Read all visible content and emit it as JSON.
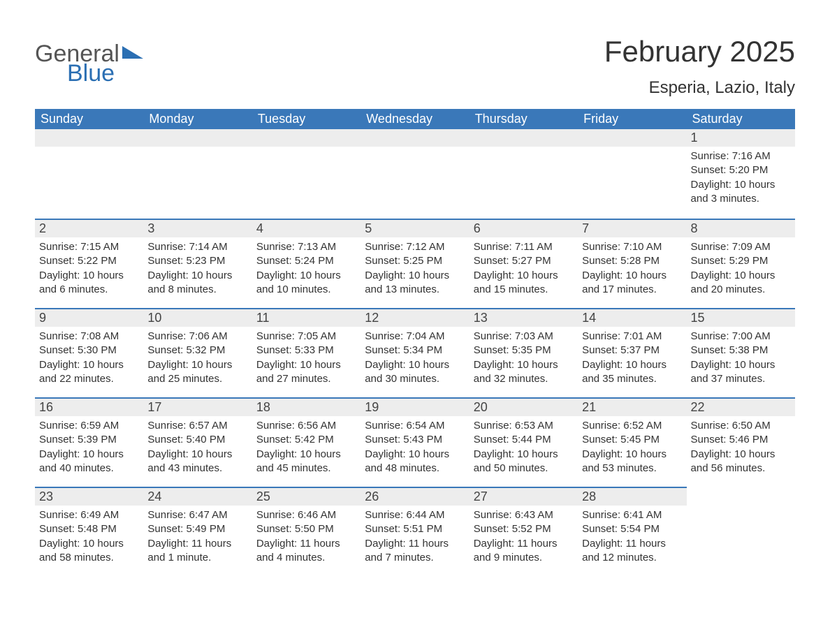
{
  "logo": {
    "word1": "General",
    "word2": "Blue"
  },
  "header": {
    "title": "February 2025",
    "location": "Esperia, Lazio, Italy"
  },
  "colors": {
    "header_bg": "#3a78b9",
    "header_text": "#ffffff",
    "daynum_bg": "#ededed",
    "row_border": "#3a78b9",
    "page_bg": "#ffffff",
    "body_text": "#333333",
    "logo_gray": "#555555",
    "logo_blue": "#2b6fb3"
  },
  "days_of_week": [
    "Sunday",
    "Monday",
    "Tuesday",
    "Wednesday",
    "Thursday",
    "Friday",
    "Saturday"
  ],
  "weeks": [
    [
      null,
      null,
      null,
      null,
      null,
      null,
      {
        "n": "1",
        "sunrise": "Sunrise: 7:16 AM",
        "sunset": "Sunset: 5:20 PM",
        "daylight": "Daylight: 10 hours and 3 minutes."
      }
    ],
    [
      {
        "n": "2",
        "sunrise": "Sunrise: 7:15 AM",
        "sunset": "Sunset: 5:22 PM",
        "daylight": "Daylight: 10 hours and 6 minutes."
      },
      {
        "n": "3",
        "sunrise": "Sunrise: 7:14 AM",
        "sunset": "Sunset: 5:23 PM",
        "daylight": "Daylight: 10 hours and 8 minutes."
      },
      {
        "n": "4",
        "sunrise": "Sunrise: 7:13 AM",
        "sunset": "Sunset: 5:24 PM",
        "daylight": "Daylight: 10 hours and 10 minutes."
      },
      {
        "n": "5",
        "sunrise": "Sunrise: 7:12 AM",
        "sunset": "Sunset: 5:25 PM",
        "daylight": "Daylight: 10 hours and 13 minutes."
      },
      {
        "n": "6",
        "sunrise": "Sunrise: 7:11 AM",
        "sunset": "Sunset: 5:27 PM",
        "daylight": "Daylight: 10 hours and 15 minutes."
      },
      {
        "n": "7",
        "sunrise": "Sunrise: 7:10 AM",
        "sunset": "Sunset: 5:28 PM",
        "daylight": "Daylight: 10 hours and 17 minutes."
      },
      {
        "n": "8",
        "sunrise": "Sunrise: 7:09 AM",
        "sunset": "Sunset: 5:29 PM",
        "daylight": "Daylight: 10 hours and 20 minutes."
      }
    ],
    [
      {
        "n": "9",
        "sunrise": "Sunrise: 7:08 AM",
        "sunset": "Sunset: 5:30 PM",
        "daylight": "Daylight: 10 hours and 22 minutes."
      },
      {
        "n": "10",
        "sunrise": "Sunrise: 7:06 AM",
        "sunset": "Sunset: 5:32 PM",
        "daylight": "Daylight: 10 hours and 25 minutes."
      },
      {
        "n": "11",
        "sunrise": "Sunrise: 7:05 AM",
        "sunset": "Sunset: 5:33 PM",
        "daylight": "Daylight: 10 hours and 27 minutes."
      },
      {
        "n": "12",
        "sunrise": "Sunrise: 7:04 AM",
        "sunset": "Sunset: 5:34 PM",
        "daylight": "Daylight: 10 hours and 30 minutes."
      },
      {
        "n": "13",
        "sunrise": "Sunrise: 7:03 AM",
        "sunset": "Sunset: 5:35 PM",
        "daylight": "Daylight: 10 hours and 32 minutes."
      },
      {
        "n": "14",
        "sunrise": "Sunrise: 7:01 AM",
        "sunset": "Sunset: 5:37 PM",
        "daylight": "Daylight: 10 hours and 35 minutes."
      },
      {
        "n": "15",
        "sunrise": "Sunrise: 7:00 AM",
        "sunset": "Sunset: 5:38 PM",
        "daylight": "Daylight: 10 hours and 37 minutes."
      }
    ],
    [
      {
        "n": "16",
        "sunrise": "Sunrise: 6:59 AM",
        "sunset": "Sunset: 5:39 PM",
        "daylight": "Daylight: 10 hours and 40 minutes."
      },
      {
        "n": "17",
        "sunrise": "Sunrise: 6:57 AM",
        "sunset": "Sunset: 5:40 PM",
        "daylight": "Daylight: 10 hours and 43 minutes."
      },
      {
        "n": "18",
        "sunrise": "Sunrise: 6:56 AM",
        "sunset": "Sunset: 5:42 PM",
        "daylight": "Daylight: 10 hours and 45 minutes."
      },
      {
        "n": "19",
        "sunrise": "Sunrise: 6:54 AM",
        "sunset": "Sunset: 5:43 PM",
        "daylight": "Daylight: 10 hours and 48 minutes."
      },
      {
        "n": "20",
        "sunrise": "Sunrise: 6:53 AM",
        "sunset": "Sunset: 5:44 PM",
        "daylight": "Daylight: 10 hours and 50 minutes."
      },
      {
        "n": "21",
        "sunrise": "Sunrise: 6:52 AM",
        "sunset": "Sunset: 5:45 PM",
        "daylight": "Daylight: 10 hours and 53 minutes."
      },
      {
        "n": "22",
        "sunrise": "Sunrise: 6:50 AM",
        "sunset": "Sunset: 5:46 PM",
        "daylight": "Daylight: 10 hours and 56 minutes."
      }
    ],
    [
      {
        "n": "23",
        "sunrise": "Sunrise: 6:49 AM",
        "sunset": "Sunset: 5:48 PM",
        "daylight": "Daylight: 10 hours and 58 minutes."
      },
      {
        "n": "24",
        "sunrise": "Sunrise: 6:47 AM",
        "sunset": "Sunset: 5:49 PM",
        "daylight": "Daylight: 11 hours and 1 minute."
      },
      {
        "n": "25",
        "sunrise": "Sunrise: 6:46 AM",
        "sunset": "Sunset: 5:50 PM",
        "daylight": "Daylight: 11 hours and 4 minutes."
      },
      {
        "n": "26",
        "sunrise": "Sunrise: 6:44 AM",
        "sunset": "Sunset: 5:51 PM",
        "daylight": "Daylight: 11 hours and 7 minutes."
      },
      {
        "n": "27",
        "sunrise": "Sunrise: 6:43 AM",
        "sunset": "Sunset: 5:52 PM",
        "daylight": "Daylight: 11 hours and 9 minutes."
      },
      {
        "n": "28",
        "sunrise": "Sunrise: 6:41 AM",
        "sunset": "Sunset: 5:54 PM",
        "daylight": "Daylight: 11 hours and 12 minutes."
      },
      null
    ]
  ]
}
